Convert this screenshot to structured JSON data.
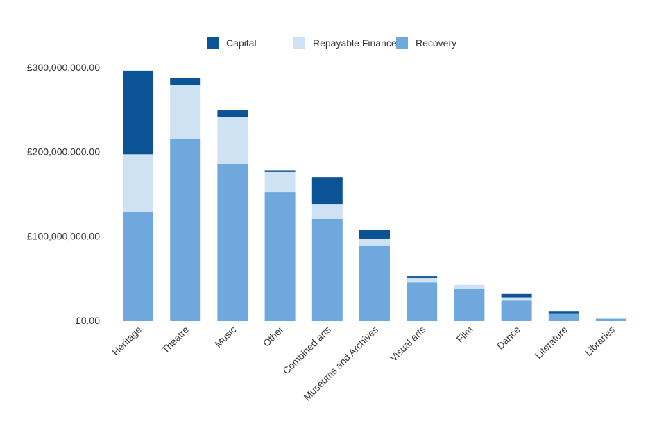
{
  "chart_data": {
    "type": "bar",
    "stacked": true,
    "title": "",
    "xlabel": "",
    "ylabel": "",
    "ylim": [
      0,
      300000000
    ],
    "yticks": [
      0,
      100000000,
      200000000,
      300000000
    ],
    "ytick_labels": [
      "£0.00",
      "£100,000,000.00",
      "£200,000,000.00",
      "£300,000,000.00"
    ],
    "grid": false,
    "legend_position": "top-center",
    "categories": [
      "Heritage",
      "Theatre",
      "Music",
      "Other",
      "Combined arts",
      "Museums and Archives",
      "Visual arts",
      "Film",
      "Dance",
      "Literature",
      "Libraries"
    ],
    "series": [
      {
        "name": "Recovery",
        "color": "#6fa8dc",
        "values": [
          129000000,
          215000000,
          185000000,
          152000000,
          120000000,
          88000000,
          45000000,
          37500000,
          23600000,
          8500000,
          2000000
        ]
      },
      {
        "name": "Repayable Finance",
        "color": "#cfe2f3",
        "values": [
          68000000,
          64000000,
          56000000,
          24000000,
          18000000,
          9000000,
          6000000,
          4600000,
          3900000,
          0,
          0
        ]
      },
      {
        "name": "Capital",
        "color": "#0b5394",
        "values": [
          99000000,
          8000000,
          8000000,
          2000000,
          32000000,
          10000000,
          1500000,
          0,
          3900000,
          2000000,
          0
        ]
      }
    ],
    "legend_order": [
      "Capital",
      "Repayable Finance",
      "Recovery"
    ]
  }
}
